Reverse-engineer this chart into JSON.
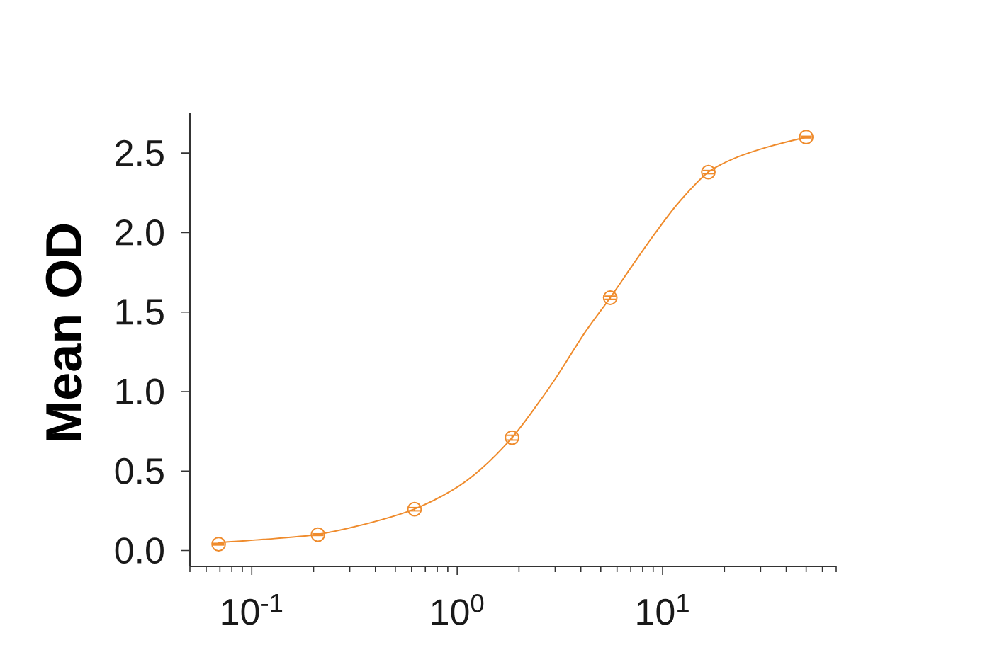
{
  "chart_data": {
    "type": "scatter",
    "ylabel": "Mean OD",
    "series": [
      {
        "type": "line",
        "color": "#ef8b2c",
        "line_style": "solid",
        "marker": "none",
        "x": [
          0.069,
          0.114,
          0.206,
          0.366,
          0.617,
          0.949,
          1.3,
          1.85,
          2.46,
          3.04,
          4.18,
          5.56,
          7.1,
          9.25,
          12.0,
          16.7,
          22.7,
          32.9,
          50
        ],
        "values": [
          0.05,
          0.07,
          0.1,
          0.17,
          0.26,
          0.38,
          0.51,
          0.71,
          0.92,
          1.09,
          1.37,
          1.59,
          1.79,
          2.0,
          2.19,
          2.38,
          2.47,
          2.54,
          2.6
        ]
      },
      {
        "type": "scatter",
        "color": "#ef8b2c",
        "marker": "circle",
        "x": [
          0.069,
          0.21,
          0.62,
          1.85,
          5.56,
          16.7,
          50
        ],
        "values": [
          0.04,
          0.1,
          0.26,
          0.71,
          1.59,
          2.38,
          2.6
        ],
        "errors": [
          0.005,
          0.005,
          0.01,
          0.015,
          0.01,
          0.01,
          0.005
        ]
      }
    ],
    "log": "x",
    "xlim": [
      0.05,
      70
    ],
    "ylim": [
      -0.1,
      2.75
    ],
    "xticks": [
      {
        "value": 0.1,
        "label": "10$^{-1}$"
      },
      {
        "value": 1,
        "label": "10$^{0}$"
      },
      {
        "value": 10,
        "label": "10$^{1}$"
      }
    ],
    "yticks": [
      {
        "value": 0,
        "label": "0.0"
      },
      {
        "value": 0.5,
        "label": "0.5"
      },
      {
        "value": 1,
        "label": "1.0"
      },
      {
        "value": 1.5,
        "label": "1.5"
      },
      {
        "value": 2,
        "label": "2.0"
      },
      {
        "value": 2.5,
        "label": "2.5"
      }
    ]
  }
}
